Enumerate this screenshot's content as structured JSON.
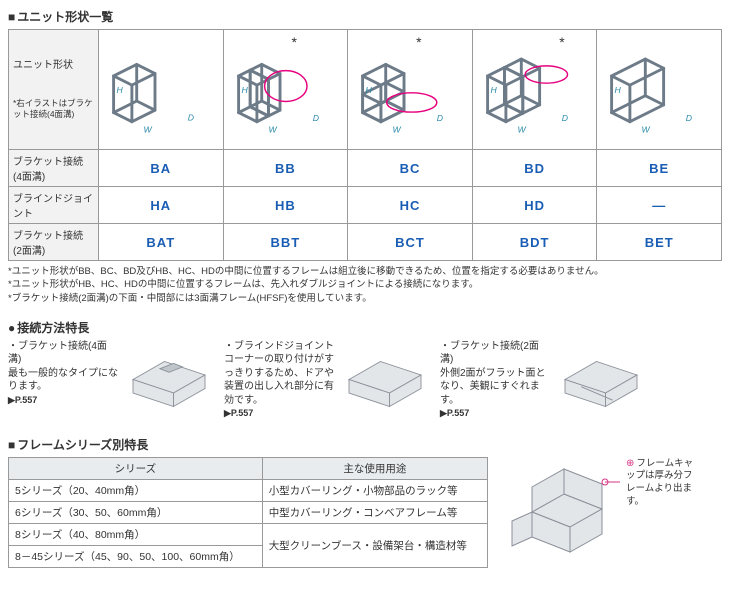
{
  "section1": {
    "title": "ユニット形状一覧",
    "rowHeaders": {
      "shape": "ユニット形状",
      "shapeNote": "*右イラストはブラケット接続(4面溝)",
      "bracket4": "ブラケット接続 (4面溝)",
      "blind": "ブラインドジョイント",
      "bracket2": "ブラケット接続 (2面溝)"
    },
    "codes": {
      "bracket4": [
        "BA",
        "BB",
        "BC",
        "BD",
        "BE"
      ],
      "blind": [
        "HA",
        "HB",
        "HC",
        "HD",
        "—"
      ],
      "bracket2": [
        "BAT",
        "BBT",
        "BCT",
        "BDT",
        "BET"
      ]
    },
    "stars": [
      false,
      true,
      true,
      true,
      false
    ],
    "dimLabels": {
      "h": "H",
      "w": "W",
      "d": "D"
    },
    "notes": [
      "*ユニット形状がBB、BC、BD及びHB、HC、HDの中間に位置するフレームは組立後に移動できるため、位置を指定する必要はありません。",
      "*ユニット形状がHB、HC、HDの中間に位置するフレームは、先入れダブルジョイントによる接続になります。",
      "*ブラケット接続(2面溝)の下面・中間部には3面溝フレーム(HFSF)を使用しています。"
    ],
    "colors": {
      "frameStroke": "#6d7b88",
      "frameFill": "#d9dee3",
      "highlight": "#e6007e",
      "dimText": "#2a8aa9"
    }
  },
  "section2": {
    "title": "接続方法特長",
    "methods": [
      {
        "line1": "・ブラケット接続(4面溝)",
        "line2": "最も一般的なタイプになります。",
        "page": "P.557"
      },
      {
        "line1": "・ブラインドジョイント",
        "line2": "コーナーの取り付けがすっきりするため、ドアや装置の出し入れ部分に有効です。",
        "page": "P.557"
      },
      {
        "line1": "・ブラケット接続(2面溝)",
        "line2": "外側2面がフラット面となり、美観にすぐれます。",
        "page": "P.557"
      }
    ]
  },
  "section3": {
    "title": "フレームシリーズ別特長",
    "headers": [
      "シリーズ",
      "主な使用用途"
    ],
    "rows": [
      {
        "series": "5シリーズ（20、40mm角）",
        "use": "小型カバーリング・小物部品のラック等"
      },
      {
        "series": "6シリーズ（30、50、60mm角）",
        "use": "中型カバーリング・コンベアフレーム等"
      },
      {
        "series": "8シリーズ（40、80mm角）",
        "use": "大型クリーンブース・設備架台・構造材等",
        "rowspan": 2,
        "merged": false
      },
      {
        "series": "8－45シリーズ（45、90、50、100、60mm角）",
        "merged": true
      }
    ],
    "aside": "フレームキャップは厚み分フレームより出ます。"
  }
}
